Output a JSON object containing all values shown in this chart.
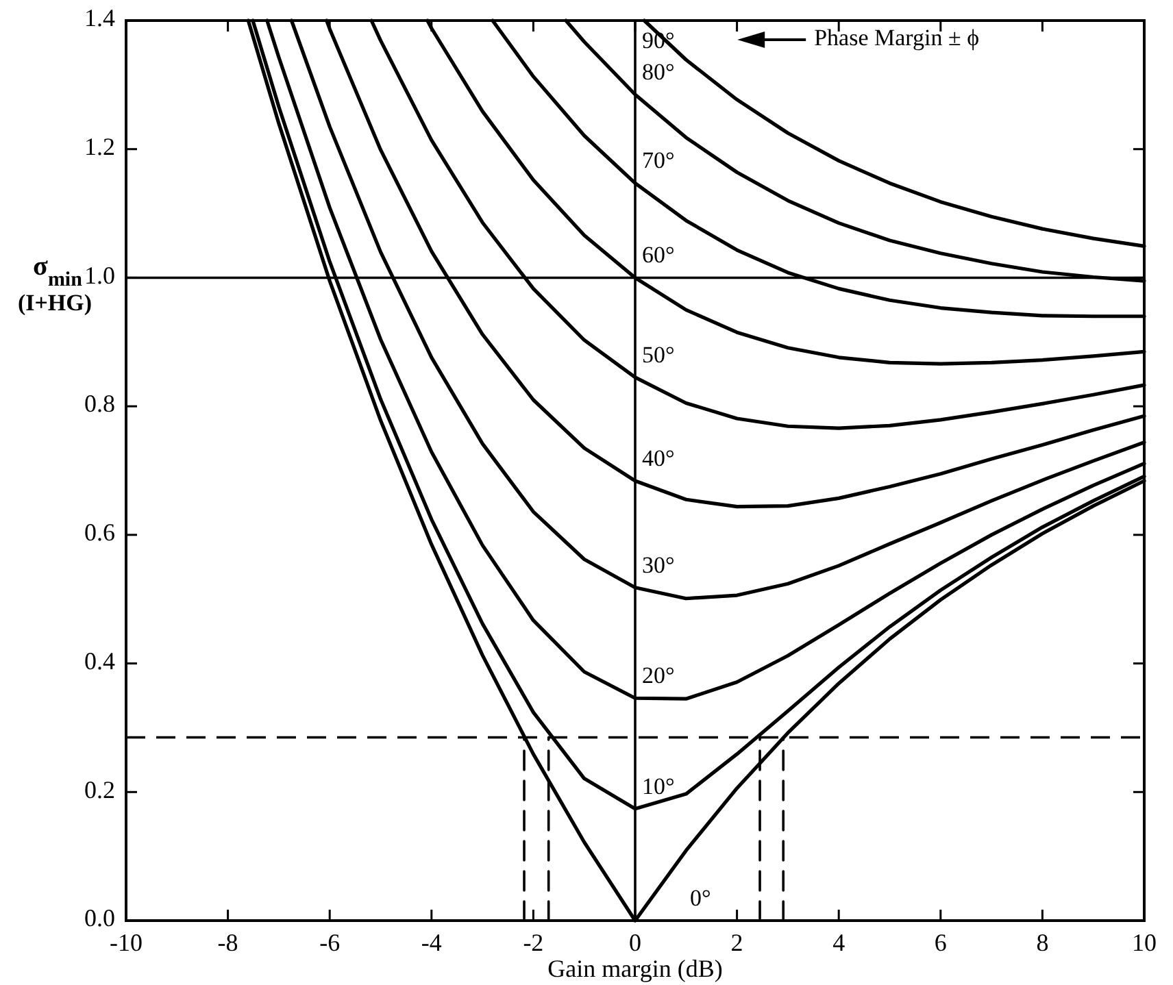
{
  "chart_data": {
    "type": "line",
    "xlabel": "Gain margin (dB)",
    "ylabel": "σ$_{min}$ (I+HG)",
    "xlim": [
      -10,
      10
    ],
    "ylim": [
      0,
      1.4
    ],
    "xticks": [
      -10,
      -8,
      -6,
      -4,
      -2,
      0,
      2,
      4,
      6,
      8,
      10
    ],
    "yticks": [
      {
        "value": 0,
        "label": "0.0"
      },
      {
        "value": 0.2,
        "label": "0.2"
      },
      {
        "value": 0.4,
        "label": "0.4"
      },
      {
        "value": 0.6,
        "label": "0.6"
      },
      {
        "value": 0.8,
        "label": "0.8"
      },
      {
        "value": 1,
        "label": "1.0"
      },
      {
        "value": 1.2,
        "label": "1.2"
      },
      {
        "value": 1.4,
        "label": "1.4"
      }
    ],
    "grid": false,
    "marker": "none",
    "line_style": "solid",
    "annotations": [
      "Phase Margin ± ϕ"
    ],
    "ref_lines": [
      {
        "axis": "y",
        "value": 1,
        "color": "#000000",
        "line_style": "solid"
      },
      {
        "axis": "x",
        "value": 0,
        "color": "#000000",
        "line_style": "solid"
      },
      {
        "axis": "y",
        "value": 0.285,
        "color": "#000000",
        "line_style": "dashed"
      }
    ],
    "series": [
      {
        "name": "0°",
        "color": "#000000",
        "x": [
          -7.6,
          -7,
          -6,
          -5,
          -4,
          -3,
          -2,
          -1,
          0,
          1,
          2,
          3,
          4,
          5,
          6,
          7,
          8,
          9,
          10
        ],
        "values": [
          1.4,
          1.24,
          0.995,
          0.778,
          0.585,
          0.413,
          0.259,
          0.122,
          0,
          0.109,
          0.206,
          0.292,
          0.369,
          0.438,
          0.499,
          0.553,
          0.602,
          0.645,
          0.684
        ]
      },
      {
        "name": "10°",
        "color": "#000000",
        "x": [
          -7.51,
          -7,
          -6,
          -5,
          -4,
          -3,
          -2,
          -1,
          0,
          1,
          2,
          3,
          4,
          5,
          6,
          7,
          8,
          9,
          10
        ],
        "values": [
          1.4,
          1.266,
          1.025,
          0.811,
          0.624,
          0.462,
          0.324,
          0.221,
          0.174,
          0.197,
          0.259,
          0.326,
          0.394,
          0.457,
          0.514,
          0.565,
          0.612,
          0.653,
          0.691
        ]
      },
      {
        "name": "20°",
        "color": "#000000",
        "x": [
          -7.23,
          -7,
          -6,
          -5,
          -4,
          -3,
          -2,
          -1,
          0,
          1,
          2,
          3,
          4,
          5,
          6,
          7,
          8,
          9,
          10
        ],
        "values": [
          1.4,
          1.343,
          1.109,
          0.904,
          0.729,
          0.584,
          0.467,
          0.387,
          0.346,
          0.345,
          0.371,
          0.412,
          0.46,
          0.509,
          0.556,
          0.6,
          0.64,
          0.677,
          0.711
        ]
      },
      {
        "name": "30°",
        "color": "#000000",
        "x": [
          -6.75,
          -6,
          -5,
          -4,
          -3,
          -2,
          -1,
          0,
          1,
          2,
          3,
          4,
          5,
          6,
          7,
          8,
          9,
          10
        ],
        "values": [
          1.4,
          1.235,
          1.04,
          0.876,
          0.742,
          0.636,
          0.562,
          0.518,
          0.501,
          0.506,
          0.524,
          0.552,
          0.586,
          0.619,
          0.653,
          0.685,
          0.715,
          0.744
        ]
      },
      {
        "name": "40°",
        "color": "#000000",
        "x": [
          -6.06,
          -6,
          -5,
          -4,
          -3,
          -2,
          -1,
          0,
          1,
          2,
          3,
          4,
          5,
          6,
          7,
          8,
          9,
          10
        ],
        "values": [
          1.4,
          1.387,
          1.199,
          1.041,
          0.912,
          0.81,
          0.735,
          0.684,
          0.655,
          0.644,
          0.645,
          0.657,
          0.675,
          0.695,
          0.718,
          0.74,
          0.763,
          0.785
        ]
      },
      {
        "name": "50°",
        "color": "#000000",
        "x": [
          -5.18,
          -5,
          -4,
          -3,
          -2,
          -1,
          0,
          1,
          2,
          3,
          4,
          5,
          6,
          7,
          8,
          9,
          10
        ],
        "values": [
          1.4,
          1.369,
          1.214,
          1.086,
          0.983,
          0.903,
          0.845,
          0.805,
          0.781,
          0.769,
          0.766,
          0.77,
          0.779,
          0.791,
          0.804,
          0.818,
          0.833
        ]
      },
      {
        "name": "60°",
        "color": "#000000",
        "x": [
          -4.08,
          -4,
          -3,
          -2,
          -1,
          0,
          1,
          2,
          3,
          4,
          5,
          6,
          7,
          8,
          9,
          10
        ],
        "values": [
          1.4,
          1.388,
          1.259,
          1.152,
          1.066,
          1,
          0.95,
          0.915,
          0.891,
          0.876,
          0.868,
          0.866,
          0.868,
          0.872,
          0.878,
          0.885
        ]
      },
      {
        "name": "70°",
        "color": "#000000",
        "x": [
          -2.8,
          -2,
          -1,
          0,
          1,
          2,
          3,
          4,
          5,
          6,
          7,
          8,
          9,
          10
        ],
        "values": [
          1.4,
          1.313,
          1.221,
          1.147,
          1.089,
          1.043,
          1.008,
          0.983,
          0.965,
          0.953,
          0.946,
          0.941,
          0.94,
          0.94
        ]
      },
      {
        "name": "80°",
        "color": "#000000",
        "x": [
          -1.36,
          -1,
          0,
          1,
          2,
          3,
          4,
          5,
          6,
          7,
          8,
          9,
          10
        ],
        "values": [
          1.4,
          1.367,
          1.285,
          1.218,
          1.164,
          1.12,
          1.085,
          1.058,
          1.038,
          1.022,
          1.009,
          1.001,
          0.995
        ]
      },
      {
        "name": "90°",
        "color": "#000000",
        "x": [
          0.18,
          1,
          2,
          3,
          4,
          5,
          6,
          7,
          8,
          9,
          10
        ],
        "values": [
          1.4,
          1.339,
          1.277,
          1.225,
          1.182,
          1.147,
          1.118,
          1.095,
          1.076,
          1.061,
          1.049
        ]
      },
      {
        "color": "#000000",
        "line_style": "dashed",
        "x": [
          -2.18,
          -2.18
        ],
        "values": [
          0,
          0.285
        ]
      },
      {
        "color": "#000000",
        "line_style": "dashed",
        "x": [
          -1.7,
          -1.7
        ],
        "values": [
          0,
          0.285
        ]
      },
      {
        "color": "#000000",
        "line_style": "dashed",
        "x": [
          2.45,
          2.45
        ],
        "values": [
          0,
          0.285
        ]
      },
      {
        "color": "#000000",
        "line_style": "dashed",
        "x": [
          2.91,
          2.91
        ],
        "values": [
          0,
          0.285
        ]
      }
    ]
  }
}
